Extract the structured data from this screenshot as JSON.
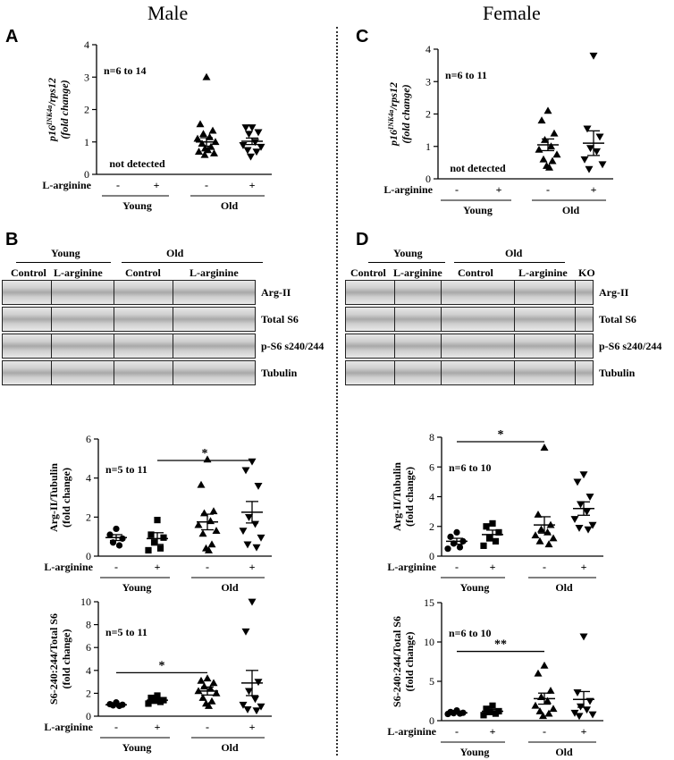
{
  "titles": {
    "male": "Male",
    "female": "Female"
  },
  "panel_letters": {
    "A": "A",
    "B": "B",
    "C": "C",
    "D": "D"
  },
  "blots": {
    "B": {
      "groups": [
        "Young",
        "Old"
      ],
      "subgroups": [
        "Control",
        "L-arginine",
        "Control",
        "L-arginine"
      ],
      "rows": [
        "Arg-II",
        "Total S6",
        "p-S6 s240/244",
        "Tubulin"
      ]
    },
    "D": {
      "groups": [
        "Young",
        "Old"
      ],
      "subgroups": [
        "Control",
        "L-arginine",
        "Control",
        "L-arginine",
        "KO"
      ],
      "rows": [
        "Arg-II",
        "Total S6",
        "p-S6 s240/244",
        "Tubulin"
      ]
    }
  },
  "chart_data": [
    {
      "id": "A",
      "type": "scatter",
      "ylabel_main": "p16",
      "ylabel_sup": "INK4a",
      "ylabel_tail": "/rps12",
      "ylabel2": "(fold change)",
      "ylim": [
        0,
        4
      ],
      "yticks": [
        0,
        1,
        2,
        3,
        4
      ],
      "annotation": "n=6 to 14",
      "note": "not detected",
      "row_label": "L-arginine",
      "treatment": [
        "-",
        "+",
        "-",
        "+"
      ],
      "groups": [
        "Young",
        "Old"
      ],
      "series": [
        {
          "marker": "none",
          "values": []
        },
        {
          "marker": "none",
          "values": []
        },
        {
          "marker": "triangle-up",
          "mean": 1.0,
          "sem": 0.13,
          "values": [
            3.0,
            1.55,
            1.35,
            1.25,
            1.15,
            1.1,
            1.0,
            0.95,
            0.85,
            0.8,
            0.75,
            0.7,
            0.65,
            0.6
          ]
        },
        {
          "marker": "triangle-down",
          "mean": 1.02,
          "sem": 0.1,
          "values": [
            1.45,
            1.45,
            1.3,
            1.25,
            1.0,
            0.9,
            0.85,
            0.75,
            0.7,
            0.55
          ]
        }
      ],
      "significance": []
    },
    {
      "id": "C",
      "type": "scatter",
      "ylabel_main": "p16",
      "ylabel_sup": "INK4a",
      "ylabel_tail": "/rps12",
      "ylabel2": "(fold change)",
      "ylim": [
        0,
        4
      ],
      "yticks": [
        0,
        1,
        2,
        3,
        4
      ],
      "annotation": "n=6 to 11",
      "note": "not detected",
      "row_label": "L-arginine",
      "treatment": [
        "-",
        "+",
        "-",
        "+"
      ],
      "groups": [
        "Young",
        "Old"
      ],
      "series": [
        {
          "marker": "none",
          "values": []
        },
        {
          "marker": "none",
          "values": []
        },
        {
          "marker": "triangle-up",
          "mean": 1.05,
          "sem": 0.18,
          "values": [
            2.1,
            1.8,
            1.4,
            1.2,
            1.0,
            0.9,
            0.75,
            0.6,
            0.55,
            0.4,
            0.35
          ]
        },
        {
          "marker": "triangle-down",
          "mean": 1.1,
          "sem": 0.38,
          "values": [
            3.8,
            1.55,
            1.3,
            0.95,
            0.85,
            0.6,
            0.45,
            0.3
          ]
        }
      ],
      "significance": []
    },
    {
      "id": "B-argII",
      "type": "scatter",
      "ylabel_main": "Arg-II/Tubulin",
      "ylabel2": "(fold change)",
      "ylim": [
        0,
        6
      ],
      "yticks": [
        0,
        2,
        4,
        6
      ],
      "annotation": "n=5 to 11",
      "row_label": "L-arginine",
      "treatment": [
        "-",
        "+",
        "-",
        "+"
      ],
      "groups": [
        "Young",
        "Old"
      ],
      "series": [
        {
          "marker": "circle",
          "mean": 0.95,
          "sem": 0.15,
          "values": [
            1.4,
            1.1,
            0.9,
            0.7,
            0.55
          ]
        },
        {
          "marker": "square",
          "mean": 0.9,
          "sem": 0.3,
          "values": [
            1.85,
            1.1,
            0.95,
            0.7,
            0.4,
            0.3
          ]
        },
        {
          "marker": "triangle-up",
          "mean": 1.75,
          "sem": 0.4,
          "values": [
            4.95,
            3.65,
            2.3,
            2.2,
            1.8,
            1.6,
            1.3,
            1.15,
            0.6,
            0.4,
            0.3
          ]
        },
        {
          "marker": "triangle-down",
          "mean": 2.25,
          "sem": 0.55,
          "values": [
            4.85,
            4.4,
            3.6,
            2.0,
            1.65,
            1.3,
            0.95,
            0.6,
            0.45
          ]
        }
      ],
      "significance": [
        {
          "from": 1,
          "to": 3,
          "label": "*",
          "y": 4.9
        }
      ]
    },
    {
      "id": "B-S6",
      "type": "scatter",
      "ylabel_main": "S6-240:244/Total S6",
      "ylabel2": "(fold change)",
      "ylim": [
        0,
        10
      ],
      "yticks": [
        0,
        2,
        4,
        6,
        8,
        10
      ],
      "annotation": "n=5 to 11",
      "row_label": "L-arginine",
      "treatment": [
        "-",
        "+",
        "-",
        "+"
      ],
      "groups": [
        "Young",
        "Old"
      ],
      "series": [
        {
          "marker": "circle",
          "mean": 1.0,
          "sem": 0.06,
          "values": [
            1.2,
            1.05,
            1.0,
            0.95,
            0.9
          ]
        },
        {
          "marker": "square",
          "mean": 1.4,
          "sem": 0.12,
          "values": [
            1.8,
            1.6,
            1.4,
            1.35,
            1.25,
            1.1
          ]
        },
        {
          "marker": "triangle-up",
          "mean": 2.2,
          "sem": 0.35,
          "values": [
            3.3,
            3.1,
            2.9,
            2.6,
            2.4,
            2.2,
            2.0,
            1.6,
            1.3,
            1.1,
            0.9
          ]
        },
        {
          "marker": "triangle-down",
          "mean": 2.9,
          "sem": 1.1,
          "values": [
            10.0,
            7.4,
            3.0,
            2.2,
            1.5,
            1.0,
            0.85,
            0.6,
            0.5
          ]
        }
      ],
      "significance": [
        {
          "from": 0,
          "to": 2,
          "label": "*",
          "y": 3.8
        }
      ]
    },
    {
      "id": "D-argII",
      "type": "scatter",
      "ylabel_main": "Arg-II/Tubulin",
      "ylabel2": "(fold change)",
      "ylim": [
        0,
        8
      ],
      "yticks": [
        0,
        2,
        4,
        6,
        8
      ],
      "annotation": "n=6 to 10",
      "row_label": "L-arginine",
      "treatment": [
        "-",
        "+",
        "-",
        "+"
      ],
      "groups": [
        "Young",
        "Old"
      ],
      "series": [
        {
          "marker": "circle",
          "mean": 1.0,
          "sem": 0.2,
          "values": [
            1.6,
            1.3,
            1.0,
            0.85,
            0.6,
            0.5
          ]
        },
        {
          "marker": "square",
          "mean": 1.45,
          "sem": 0.3,
          "values": [
            2.2,
            2.0,
            1.6,
            1.2,
            1.0,
            0.7
          ]
        },
        {
          "marker": "triangle-up",
          "mean": 2.1,
          "sem": 0.55,
          "values": [
            7.3,
            2.8,
            2.1,
            1.8,
            1.6,
            1.4,
            1.2,
            1.0,
            0.8
          ]
        },
        {
          "marker": "triangle-down",
          "mean": 3.2,
          "sem": 0.45,
          "values": [
            5.5,
            5.0,
            4.0,
            3.5,
            3.0,
            2.5,
            2.1,
            1.9,
            1.8
          ]
        }
      ],
      "significance": [
        {
          "from": 0,
          "to": 2,
          "label": "*",
          "y": 7.7
        }
      ]
    },
    {
      "id": "D-S6",
      "type": "scatter",
      "ylabel_main": "S6-240:244/Total S6",
      "ylabel2": "(fold change)",
      "ylim": [
        0,
        15
      ],
      "yticks": [
        0,
        5,
        10,
        15
      ],
      "annotation": "n=6 to 10",
      "row_label": "L-arginine",
      "treatment": [
        "-",
        "+",
        "-",
        "+"
      ],
      "groups": [
        "Young",
        "Old"
      ],
      "series": [
        {
          "marker": "circle",
          "mean": 1.0,
          "sem": 0.08,
          "values": [
            1.3,
            1.1,
            1.0,
            0.95,
            0.9,
            0.85
          ]
        },
        {
          "marker": "square",
          "mean": 1.2,
          "sem": 0.2,
          "values": [
            1.9,
            1.5,
            1.2,
            1.1,
            0.9,
            0.7
          ]
        },
        {
          "marker": "triangle-up",
          "mean": 2.8,
          "sem": 0.7,
          "values": [
            7.0,
            6.0,
            3.8,
            3.0,
            2.5,
            1.9,
            1.5,
            1.2,
            0.9,
            0.6
          ]
        },
        {
          "marker": "triangle-down",
          "mean": 2.7,
          "sem": 1.0,
          "values": [
            10.7,
            3.6,
            2.5,
            1.8,
            1.4,
            1.0,
            0.8,
            0.6
          ]
        }
      ],
      "significance": [
        {
          "from": 0,
          "to": 2,
          "label": "**",
          "y": 8.8
        }
      ]
    }
  ]
}
